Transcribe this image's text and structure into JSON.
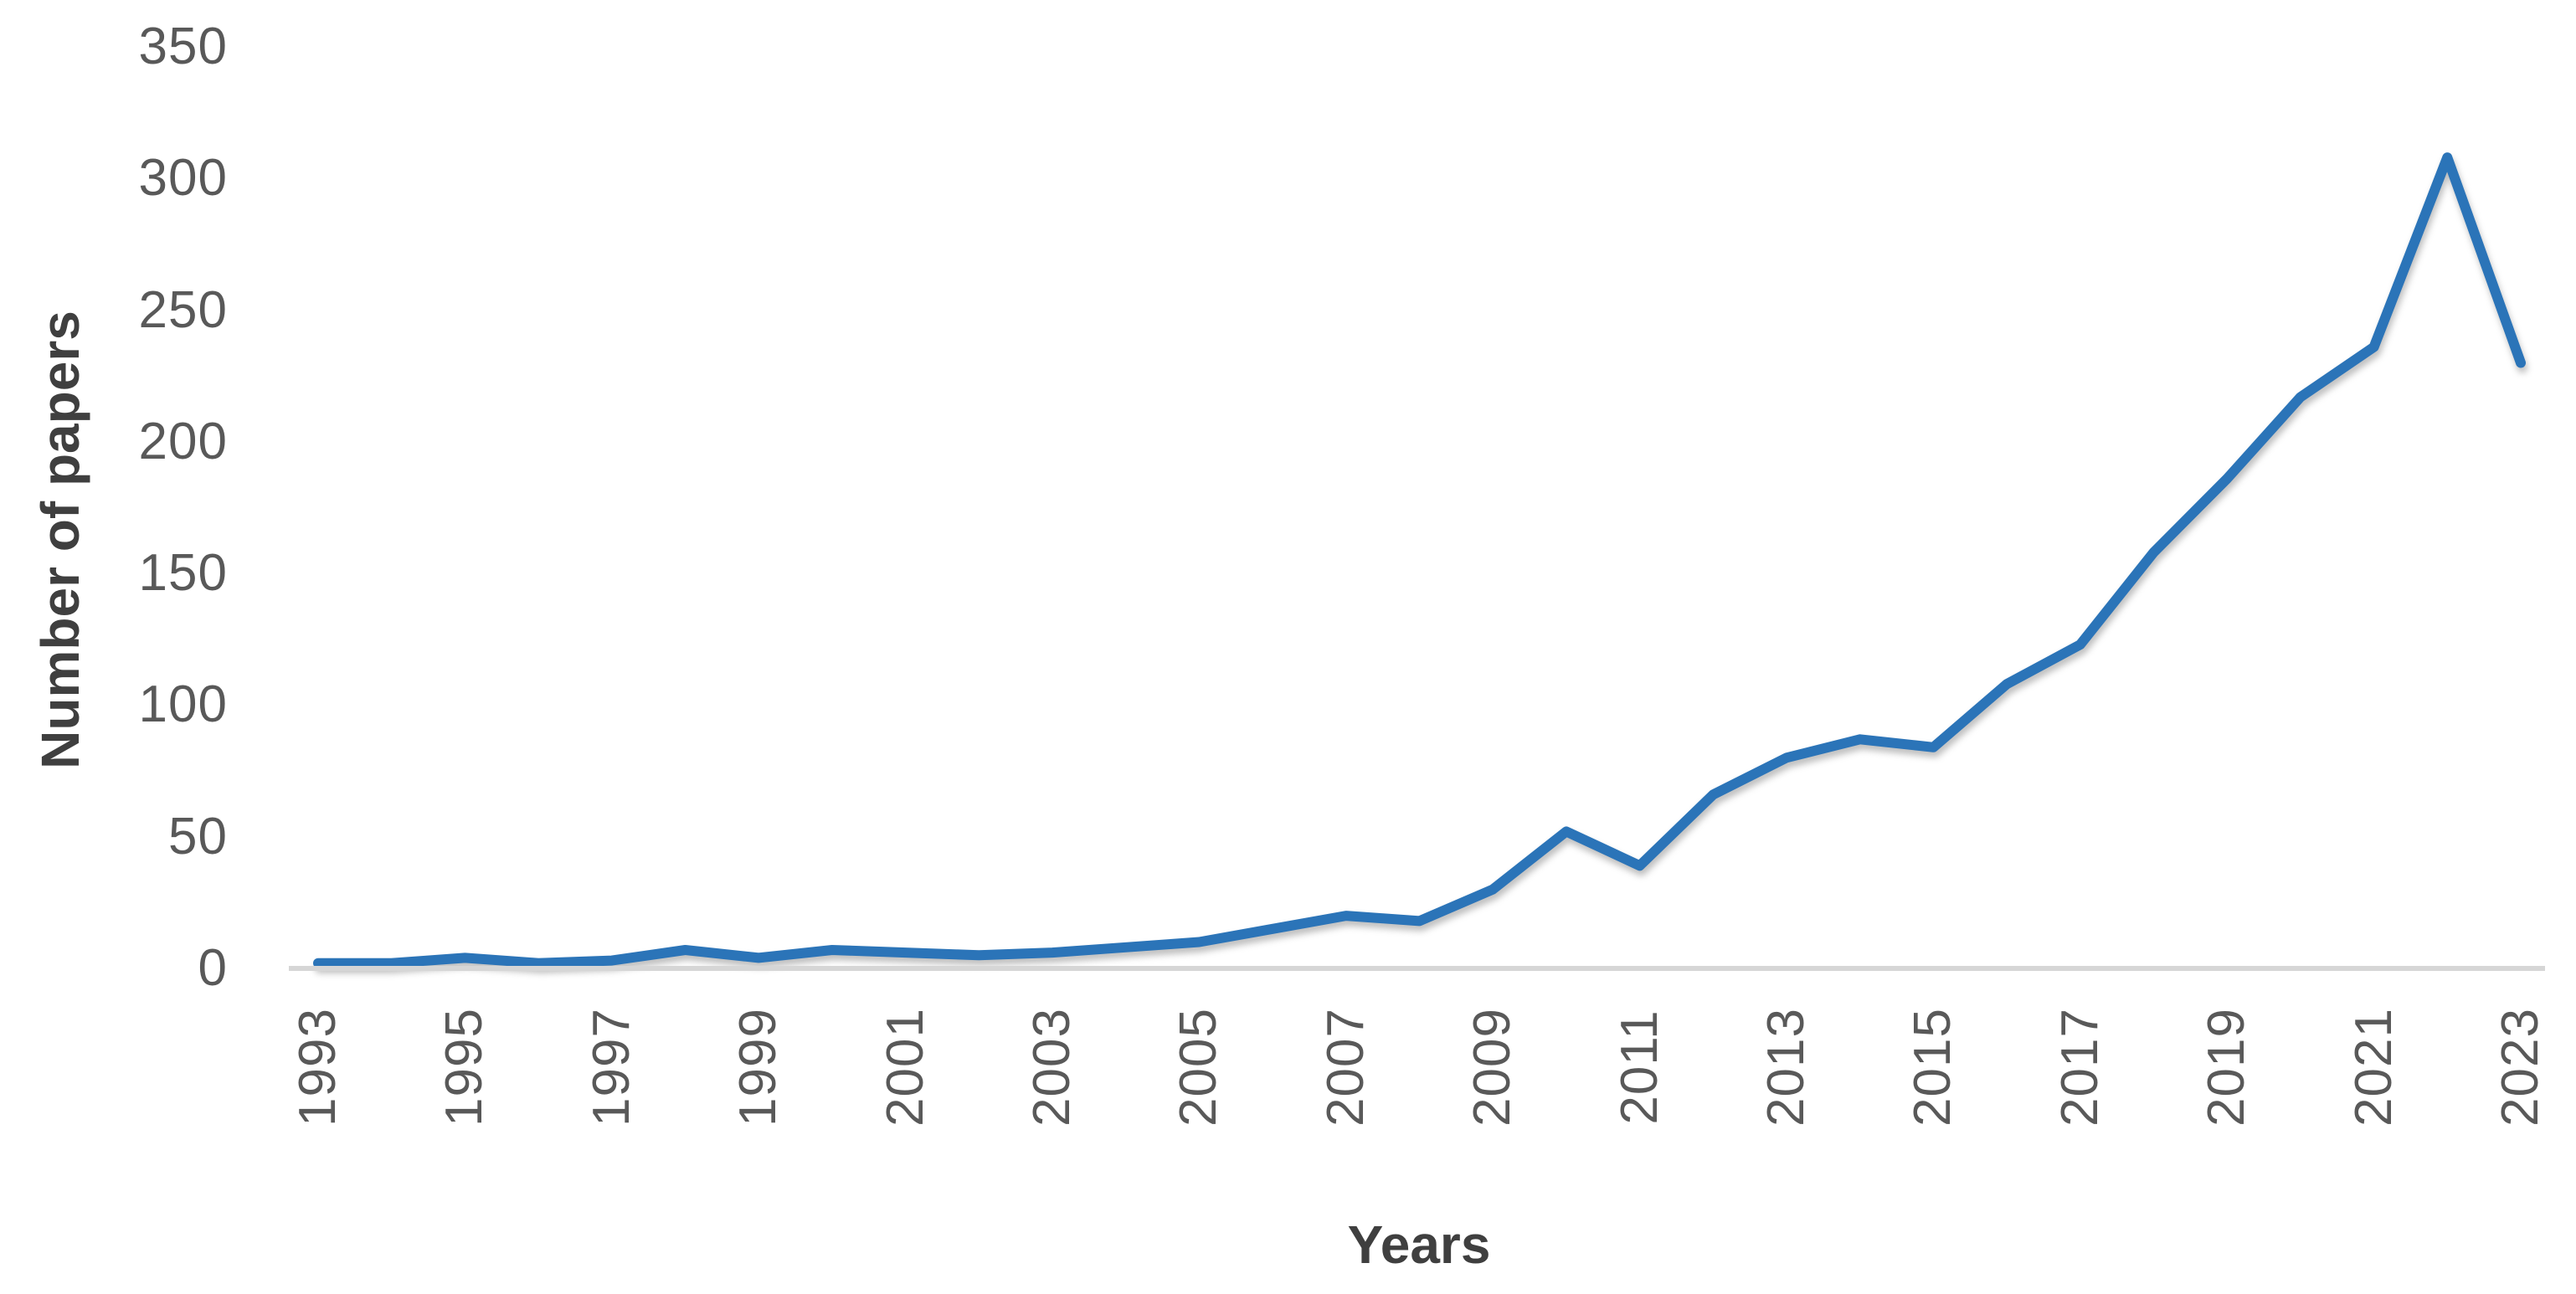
{
  "chart_data": {
    "type": "line",
    "title": "",
    "xlabel": "Years",
    "ylabel": "Number of papers",
    "x": [
      1993,
      1994,
      1995,
      1996,
      1997,
      1998,
      1999,
      2000,
      2001,
      2002,
      2003,
      2004,
      2005,
      2006,
      2007,
      2008,
      2009,
      2010,
      2011,
      2012,
      2013,
      2014,
      2015,
      2016,
      2017,
      2018,
      2019,
      2020,
      2021,
      2022,
      2023
    ],
    "series": [
      {
        "name": "Number of papers",
        "values": [
          2,
          2,
          4,
          2,
          3,
          7,
          4,
          7,
          6,
          5,
          6,
          8,
          10,
          15,
          20,
          18,
          30,
          52,
          39,
          66,
          80,
          87,
          84,
          108,
          123,
          158,
          186,
          217,
          236,
          308,
          230
        ]
      }
    ],
    "ylim": [
      0,
      350
    ],
    "y_ticks": [
      0,
      50,
      100,
      150,
      200,
      250,
      300,
      350
    ],
    "x_tick_labels": [
      "1993",
      "1995",
      "1997",
      "1999",
      "2001",
      "2003",
      "2005",
      "2007",
      "2009",
      "2011",
      "2013",
      "2015",
      "2017",
      "2019",
      "2021",
      "2023"
    ],
    "grid": "off",
    "legend": "none",
    "line_color": "#2b74b8",
    "axis_line_color": "#d6d6d6",
    "tick_label_color": "#595959",
    "axis_title_color": "#3f3f3f"
  }
}
